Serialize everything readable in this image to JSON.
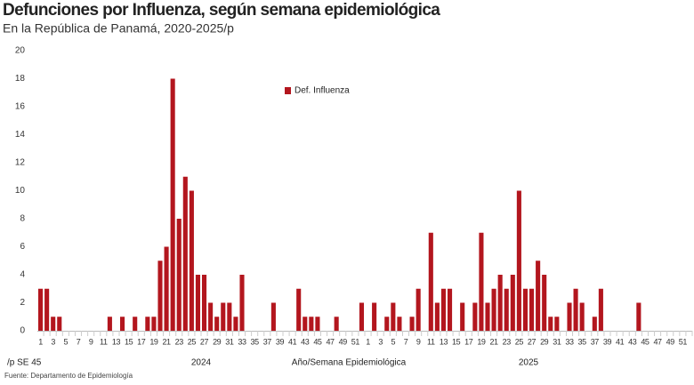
{
  "chart_data": {
    "type": "bar",
    "title": "Defunciones por Influenza, según semana epidemiológica",
    "subtitle": "En la República de Panamá, 2020-2025/p",
    "x_label": "Año/Semana Epidemiológica",
    "note": "/p SE 45",
    "source": "Fuente: Departamento de Epidemiología",
    "groups": [
      "2024",
      "2025"
    ],
    "group_size": 52,
    "categories": [
      "1",
      null,
      "3",
      null,
      "5",
      null,
      "7",
      null,
      "9",
      null,
      "11",
      null,
      "13",
      null,
      "15",
      null,
      "17",
      null,
      "19",
      null,
      "21",
      null,
      "23",
      null,
      "25",
      null,
      "27",
      null,
      "29",
      null,
      "31",
      null,
      "33",
      null,
      "35",
      null,
      "37",
      null,
      "39",
      null,
      "41",
      null,
      "43",
      null,
      "45",
      null,
      "47",
      null,
      "49",
      null,
      "51",
      null,
      "1",
      null,
      "3",
      null,
      "5",
      null,
      "7",
      null,
      "9",
      null,
      "11",
      null,
      "13",
      null,
      "15",
      null,
      "17",
      null,
      "19",
      null,
      "21",
      null,
      "23",
      null,
      "25",
      null,
      "27",
      null,
      "29",
      null,
      "31",
      null,
      "33",
      null,
      "35",
      null,
      "37",
      null,
      "39",
      null,
      "41",
      null,
      "43",
      null,
      "45",
      null,
      "47",
      null,
      "49",
      null,
      "51",
      null
    ],
    "series": [
      {
        "name": "Def. Influenza",
        "color": "#b3161e",
        "values": [
          3,
          3,
          1,
          1,
          0,
          0,
          0,
          0,
          0,
          0,
          0,
          1,
          0,
          1,
          0,
          1,
          0,
          1,
          1,
          5,
          6,
          18,
          8,
          11,
          10,
          4,
          4,
          2,
          1,
          2,
          2,
          1,
          4,
          0,
          0,
          0,
          0,
          2,
          0,
          0,
          0,
          3,
          1,
          1,
          1,
          0,
          0,
          1,
          0,
          0,
          0,
          2,
          0,
          2,
          0,
          1,
          2,
          1,
          0,
          1,
          3,
          0,
          7,
          2,
          3,
          3,
          0,
          2,
          0,
          2,
          7,
          2,
          3,
          4,
          3,
          4,
          10,
          3,
          3,
          5,
          4,
          1,
          1,
          0,
          2,
          3,
          2,
          0,
          1,
          3,
          0,
          0,
          0,
          0,
          0,
          2,
          0,
          0,
          0,
          0,
          0,
          0,
          0,
          0
        ]
      }
    ],
    "ylim": [
      0,
      20
    ],
    "yticks": [
      0,
      2,
      4,
      6,
      8,
      10,
      12,
      14,
      16,
      18,
      20
    ],
    "grid": false,
    "legend": "top"
  }
}
